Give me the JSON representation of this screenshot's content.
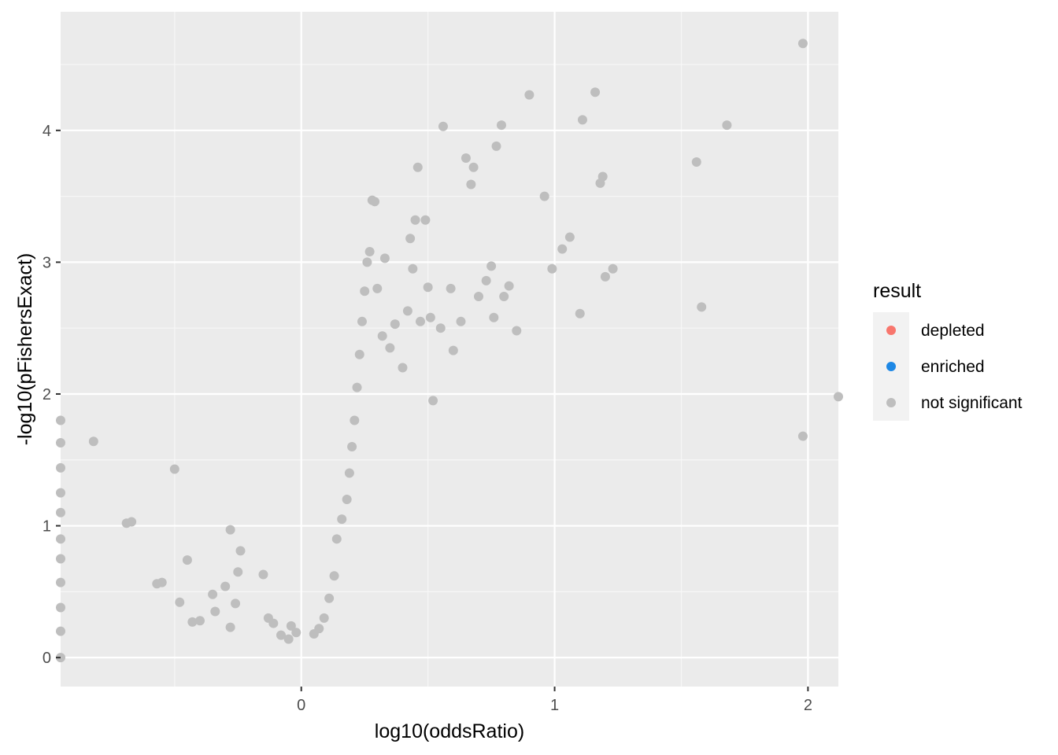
{
  "chart_data": {
    "type": "scatter",
    "title": "",
    "xlabel": "log10(oddsRatio)",
    "ylabel": "-log10(pFishersExact)",
    "xlim": [
      -0.95,
      2.12
    ],
    "ylim": [
      -0.22,
      4.9
    ],
    "x_ticks": [
      0,
      1,
      2
    ],
    "y_ticks": [
      0,
      1,
      2,
      3,
      4
    ],
    "grid": true,
    "legend": {
      "title": "result",
      "position": "right",
      "entries": [
        {
          "label": "depleted",
          "color": "#F8766D"
        },
        {
          "label": "enriched",
          "color": "#1E88E5"
        },
        {
          "label": "not significant",
          "color": "#BEBEBE"
        }
      ]
    },
    "series": [
      {
        "name": "not significant",
        "color": "#BEBEBE",
        "points": [
          [
            -0.95,
            1.8
          ],
          [
            -0.95,
            1.63
          ],
          [
            -0.95,
            1.44
          ],
          [
            -0.95,
            1.25
          ],
          [
            -0.95,
            1.1
          ],
          [
            -0.95,
            0.9
          ],
          [
            -0.95,
            0.75
          ],
          [
            -0.95,
            0.57
          ],
          [
            -0.95,
            0.38
          ],
          [
            -0.95,
            0.2
          ],
          [
            -0.95,
            0.0
          ],
          [
            -0.82,
            1.64
          ],
          [
            -0.69,
            1.02
          ],
          [
            -0.67,
            1.03
          ],
          [
            -0.57,
            0.56
          ],
          [
            -0.55,
            0.57
          ],
          [
            -0.5,
            1.43
          ],
          [
            -0.48,
            0.42
          ],
          [
            -0.45,
            0.74
          ],
          [
            -0.43,
            0.27
          ],
          [
            -0.4,
            0.28
          ],
          [
            -0.35,
            0.48
          ],
          [
            -0.34,
            0.35
          ],
          [
            -0.3,
            0.54
          ],
          [
            -0.28,
            0.97
          ],
          [
            -0.28,
            0.23
          ],
          [
            -0.26,
            0.41
          ],
          [
            -0.25,
            0.65
          ],
          [
            -0.24,
            0.81
          ],
          [
            -0.15,
            0.63
          ],
          [
            -0.13,
            0.3
          ],
          [
            -0.11,
            0.26
          ],
          [
            -0.08,
            0.17
          ],
          [
            -0.05,
            0.14
          ],
          [
            -0.04,
            0.24
          ],
          [
            -0.02,
            0.19
          ],
          [
            0.05,
            0.18
          ],
          [
            0.07,
            0.22
          ],
          [
            0.09,
            0.3
          ],
          [
            0.11,
            0.45
          ],
          [
            0.13,
            0.62
          ],
          [
            0.14,
            0.9
          ],
          [
            0.16,
            1.05
          ],
          [
            0.18,
            1.2
          ],
          [
            0.19,
            1.4
          ],
          [
            0.2,
            1.6
          ],
          [
            0.21,
            1.8
          ],
          [
            0.22,
            2.05
          ],
          [
            0.23,
            2.3
          ],
          [
            0.24,
            2.55
          ],
          [
            0.25,
            2.78
          ],
          [
            0.26,
            3.0
          ],
          [
            0.27,
            3.08
          ],
          [
            0.28,
            3.47
          ],
          [
            0.29,
            3.46
          ],
          [
            0.3,
            2.8
          ],
          [
            0.32,
            2.44
          ],
          [
            0.33,
            3.03
          ],
          [
            0.35,
            2.35
          ],
          [
            0.37,
            2.53
          ],
          [
            0.4,
            2.2
          ],
          [
            0.42,
            2.63
          ],
          [
            0.43,
            3.18
          ],
          [
            0.44,
            2.95
          ],
          [
            0.45,
            3.32
          ],
          [
            0.46,
            3.72
          ],
          [
            0.47,
            2.55
          ],
          [
            0.49,
            3.32
          ],
          [
            0.5,
            2.81
          ],
          [
            0.51,
            2.58
          ],
          [
            0.52,
            1.95
          ],
          [
            0.55,
            2.5
          ],
          [
            0.56,
            4.03
          ],
          [
            0.59,
            2.8
          ],
          [
            0.6,
            2.33
          ],
          [
            0.63,
            2.55
          ],
          [
            0.65,
            3.79
          ],
          [
            0.67,
            3.59
          ],
          [
            0.68,
            3.72
          ],
          [
            0.7,
            2.74
          ],
          [
            0.73,
            2.86
          ],
          [
            0.75,
            2.97
          ],
          [
            0.76,
            2.58
          ],
          [
            0.77,
            3.88
          ],
          [
            0.79,
            4.04
          ],
          [
            0.8,
            2.74
          ],
          [
            0.82,
            2.82
          ],
          [
            0.85,
            2.48
          ],
          [
            0.9,
            4.27
          ],
          [
            0.96,
            3.5
          ],
          [
            0.99,
            2.95
          ],
          [
            1.03,
            3.1
          ],
          [
            1.06,
            3.19
          ],
          [
            1.1,
            2.61
          ],
          [
            1.11,
            4.08
          ],
          [
            1.16,
            4.29
          ],
          [
            1.18,
            3.6
          ],
          [
            1.19,
            3.65
          ],
          [
            1.2,
            2.89
          ],
          [
            1.23,
            2.95
          ],
          [
            1.56,
            3.76
          ],
          [
            1.58,
            2.66
          ],
          [
            1.68,
            4.04
          ],
          [
            1.98,
            4.66
          ],
          [
            1.98,
            1.68
          ],
          [
            2.12,
            1.98
          ]
        ]
      }
    ]
  }
}
